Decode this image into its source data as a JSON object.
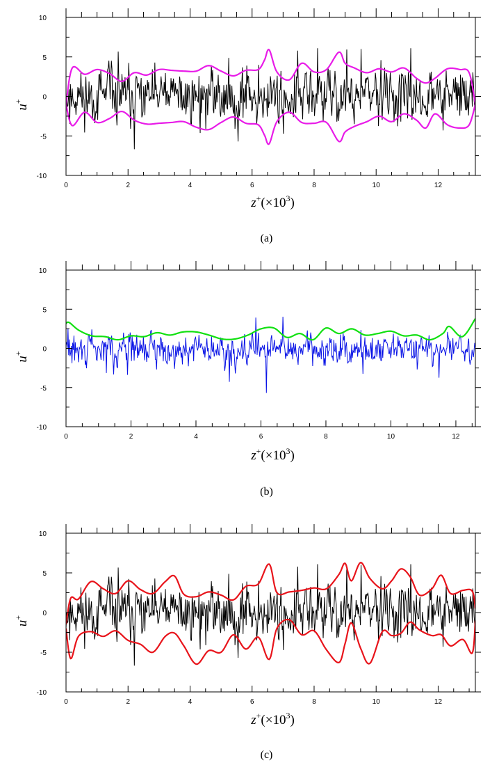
{
  "chart_data": [
    {
      "type": "line",
      "panel_label": "(a)",
      "ylabel_base": "u",
      "ylabel_sup": "+",
      "xlabel_base": "z",
      "xlabel_sup": "+",
      "xlabel_scale": "(×10",
      "xlabel_exp": "3",
      "xlabel_close": ")",
      "xlim": [
        0,
        13.2
      ],
      "ylim": [
        -10,
        10
      ],
      "xticks": [
        0,
        2,
        4,
        6,
        8,
        10,
        12
      ],
      "yticks": [
        -10,
        -5,
        0,
        5,
        10
      ],
      "grid": false,
      "signal": {
        "color": "#000000",
        "seed": 11,
        "n": 660,
        "amplitude": 2.6,
        "sharpness": 2.3
      },
      "envelopes": [
        {
          "color": "#e81be8",
          "x": [
            0,
            0.2,
            0.6,
            1.0,
            1.4,
            1.8,
            2.2,
            2.6,
            3.0,
            3.4,
            3.8,
            4.2,
            4.6,
            5.0,
            5.4,
            5.8,
            6.2,
            6.4,
            6.55,
            6.8,
            7.2,
            7.6,
            8.0,
            8.4,
            8.8,
            9.0,
            9.3,
            9.7,
            10.1,
            10.5,
            10.9,
            11.3,
            11.6,
            11.9,
            12.3,
            12.7,
            13.0,
            13.2
          ],
          "y": [
            -1.0,
            3.6,
            2.8,
            3.4,
            2.9,
            1.9,
            3.0,
            2.7,
            3.4,
            3.3,
            3.2,
            3.2,
            3.9,
            3.2,
            2.6,
            3.3,
            3.4,
            4.6,
            5.9,
            3.1,
            2.1,
            4.2,
            3.1,
            3.4,
            5.6,
            4.2,
            3.6,
            3.0,
            3.5,
            3.1,
            3.6,
            2.3,
            1.7,
            2.3,
            3.5,
            3.4,
            3.0,
            -1.0
          ]
        },
        {
          "color": "#e81be8",
          "x": [
            0,
            0.2,
            0.6,
            1.0,
            1.4,
            1.8,
            2.2,
            2.6,
            3.0,
            3.4,
            3.8,
            4.2,
            4.6,
            5.0,
            5.4,
            5.8,
            6.2,
            6.4,
            6.55,
            6.8,
            7.2,
            7.6,
            8.0,
            8.4,
            8.8,
            9.0,
            9.3,
            9.7,
            10.1,
            10.5,
            10.9,
            11.3,
            11.6,
            11.9,
            12.3,
            12.7,
            13.0,
            13.2
          ],
          "y": [
            -1.0,
            -3.7,
            -2.0,
            -3.3,
            -2.8,
            -1.9,
            -3.0,
            -3.5,
            -3.4,
            -3.3,
            -3.2,
            -3.9,
            -4.2,
            -3.3,
            -2.6,
            -3.4,
            -3.6,
            -4.9,
            -6.0,
            -3.2,
            -2.0,
            -3.3,
            -3.4,
            -3.3,
            -5.7,
            -4.5,
            -3.8,
            -3.2,
            -2.5,
            -3.2,
            -2.2,
            -3.0,
            -4.0,
            -2.2,
            -3.6,
            -4.0,
            -3.6,
            -1.0
          ]
        }
      ]
    },
    {
      "type": "line",
      "panel_label": "(b)",
      "ylabel_base": "u",
      "ylabel_sup": "+",
      "xlabel_base": "z",
      "xlabel_sup": "+",
      "xlabel_scale": "(×10",
      "xlabel_exp": "3",
      "xlabel_close": ")",
      "xlim": [
        0,
        12.6
      ],
      "ylim": [
        -10,
        10
      ],
      "xticks": [
        0,
        2,
        4,
        6,
        8,
        10,
        12
      ],
      "yticks": [
        -10,
        -5,
        0,
        5,
        10
      ],
      "grid": false,
      "signal": {
        "color": "#0a14e6",
        "seed": 29,
        "n": 620,
        "amplitude": 1.5,
        "sharpness": 2.6,
        "offset": -0.1
      },
      "envelopes": [
        {
          "color": "#11e011",
          "x": [
            0,
            0.1,
            0.4,
            0.8,
            1.2,
            1.6,
            2.0,
            2.4,
            2.8,
            3.2,
            3.6,
            4.0,
            4.4,
            4.8,
            5.2,
            5.6,
            6.0,
            6.4,
            6.8,
            7.2,
            7.6,
            8.0,
            8.4,
            8.8,
            9.2,
            9.6,
            10.0,
            10.4,
            10.8,
            11.2,
            11.6,
            11.8,
            12.2,
            12.6
          ],
          "y": [
            3.2,
            3.3,
            2.3,
            1.6,
            1.5,
            1.1,
            1.6,
            1.5,
            2.0,
            1.7,
            2.1,
            2.1,
            1.7,
            1.2,
            1.2,
            1.7,
            2.5,
            2.6,
            1.4,
            1.9,
            1.1,
            2.6,
            1.9,
            2.5,
            1.7,
            1.9,
            2.2,
            1.6,
            1.7,
            1.1,
            1.9,
            2.8,
            1.5,
            3.8
          ]
        }
      ]
    },
    {
      "type": "line",
      "panel_label": "(c)",
      "ylabel_base": "u",
      "ylabel_sup": "+",
      "xlabel_base": "z",
      "xlabel_sup": "+",
      "xlabel_scale": "(×10",
      "xlabel_exp": "3",
      "xlabel_close": ")",
      "xlim": [
        0,
        13.2
      ],
      "ylim": [
        -10,
        10
      ],
      "xticks": [
        0,
        2,
        4,
        6,
        8,
        10,
        12
      ],
      "yticks": [
        -10,
        -5,
        0,
        5,
        10
      ],
      "grid": false,
      "signal": {
        "color": "#000000",
        "seed": 11,
        "n": 660,
        "amplitude": 2.6,
        "sharpness": 2.3
      },
      "envelopes": [
        {
          "color": "#e8141b",
          "x": [
            0,
            0.15,
            0.4,
            0.8,
            1.2,
            1.6,
            2.0,
            2.4,
            2.8,
            3.2,
            3.5,
            3.8,
            4.2,
            4.6,
            5.0,
            5.4,
            5.8,
            6.2,
            6.55,
            6.8,
            7.2,
            7.6,
            8.0,
            8.4,
            8.8,
            9.0,
            9.2,
            9.5,
            9.8,
            10.2,
            10.5,
            10.8,
            11.1,
            11.4,
            11.8,
            12.1,
            12.4,
            12.8,
            13.1,
            13.2
          ],
          "y": [
            -1.5,
            1.8,
            1.7,
            3.9,
            3.0,
            2.4,
            4.0,
            2.9,
            2.4,
            3.9,
            4.6,
            2.3,
            2.0,
            2.6,
            2.2,
            1.6,
            3.3,
            3.6,
            6.1,
            2.5,
            2.6,
            2.8,
            3.1,
            3.0,
            4.8,
            6.2,
            4.0,
            6.3,
            4.3,
            3.0,
            4.0,
            5.5,
            4.5,
            2.2,
            3.0,
            4.7,
            2.4,
            2.8,
            2.7,
            0.5
          ]
        },
        {
          "color": "#e8141b",
          "x": [
            0,
            0.15,
            0.4,
            0.8,
            1.2,
            1.6,
            2.0,
            2.4,
            2.8,
            3.2,
            3.5,
            3.8,
            4.2,
            4.6,
            5.0,
            5.4,
            5.8,
            6.2,
            6.55,
            6.8,
            7.2,
            7.6,
            8.0,
            8.4,
            8.8,
            9.0,
            9.2,
            9.5,
            9.8,
            10.2,
            10.5,
            10.8,
            11.1,
            11.4,
            11.8,
            12.1,
            12.4,
            12.8,
            13.1,
            13.2
          ],
          "y": [
            -2.0,
            -5.8,
            -3.0,
            -2.4,
            -3.0,
            -2.3,
            -3.5,
            -4.0,
            -5.0,
            -3.0,
            -2.6,
            -4.2,
            -6.5,
            -4.8,
            -5.0,
            -2.8,
            -4.6,
            -3.1,
            -5.9,
            -2.0,
            -0.9,
            -2.8,
            -2.3,
            -4.7,
            -6.3,
            -3.9,
            -1.3,
            -4.5,
            -6.4,
            -2.4,
            -2.9,
            -2.6,
            -1.2,
            -2.2,
            -2.9,
            -2.8,
            -4.2,
            -3.4,
            -5.1,
            -1.0
          ]
        }
      ]
    }
  ]
}
